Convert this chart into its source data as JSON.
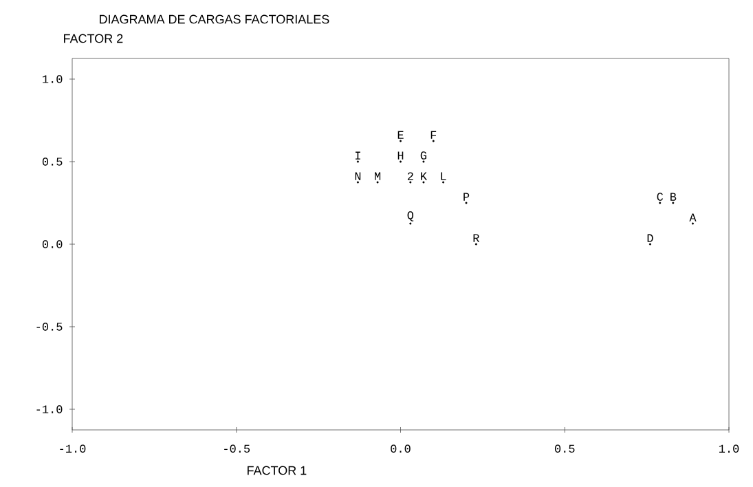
{
  "chart_data": {
    "type": "scatter",
    "marker": "circle",
    "title": "DIAGRAMA DE CARGAS FACTORIALES",
    "xlabel": "FACTOR 1",
    "ylabel": "FACTOR 2",
    "xlim": [
      -1,
      1
    ],
    "ylim": [
      -1.125,
      1.125
    ],
    "xticks": [
      {
        "value": -1,
        "label": "-1.0"
      },
      -0.5,
      {
        "value": 0,
        "label": "0.0"
      },
      0.5,
      {
        "value": 1,
        "label": "1.0"
      }
    ],
    "yticks": [
      {
        "value": -1,
        "label": "-1.0"
      },
      -0.5,
      {
        "value": 0,
        "label": "0.0"
      },
      0.5,
      {
        "value": 1,
        "label": "1.0"
      }
    ],
    "series": [
      {
        "name": "E",
        "color": "#000000",
        "x": [
          0.0
        ],
        "values": [
          0.625
        ]
      },
      {
        "name": "F",
        "color": "#000000",
        "x": [
          0.1
        ],
        "values": [
          0.625
        ]
      },
      {
        "name": "I",
        "color": "#000000",
        "x": [
          -0.13
        ],
        "values": [
          0.5
        ]
      },
      {
        "name": "H",
        "color": "#000000",
        "x": [
          0.0
        ],
        "values": [
          0.5
        ]
      },
      {
        "name": "G",
        "color": "#000000",
        "x": [
          0.07
        ],
        "values": [
          0.5
        ]
      },
      {
        "name": "N",
        "color": "#000000",
        "x": [
          -0.13
        ],
        "values": [
          0.375
        ]
      },
      {
        "name": "M",
        "color": "#000000",
        "x": [
          -0.07
        ],
        "values": [
          0.375
        ]
      },
      {
        "name": "2",
        "color": "#000000",
        "x": [
          0.03
        ],
        "values": [
          0.375
        ]
      },
      {
        "name": "K",
        "color": "#000000",
        "x": [
          0.07
        ],
        "values": [
          0.375
        ]
      },
      {
        "name": "L",
        "color": "#000000",
        "x": [
          0.13
        ],
        "values": [
          0.375
        ]
      },
      {
        "name": "P",
        "color": "#000000",
        "x": [
          0.2
        ],
        "values": [
          0.25
        ]
      },
      {
        "name": "C",
        "color": "#000000",
        "x": [
          0.79
        ],
        "values": [
          0.25
        ]
      },
      {
        "name": "B",
        "color": "#000000",
        "x": [
          0.83
        ],
        "values": [
          0.25
        ]
      },
      {
        "name": "Q",
        "color": "#000000",
        "x": [
          0.03
        ],
        "values": [
          0.125
        ]
      },
      {
        "name": "A",
        "color": "#000000",
        "x": [
          0.89
        ],
        "values": [
          0.125
        ]
      },
      {
        "name": "R",
        "color": "#000000",
        "x": [
          0.23
        ],
        "values": [
          0.0
        ]
      },
      {
        "name": "D",
        "color": "#000000",
        "x": [
          0.76
        ],
        "values": [
          0.0
        ]
      }
    ]
  }
}
